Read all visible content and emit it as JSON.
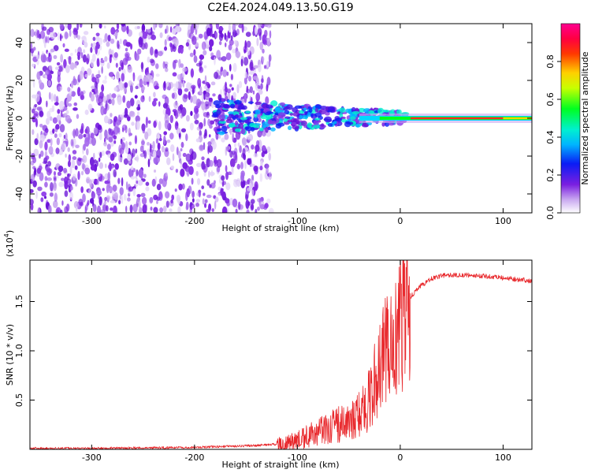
{
  "figure_title": "C2E4.2024.049.13.50.G19",
  "colors": {
    "snr_line": "#e8262a",
    "spectrogram_noise": "#7a1fe0",
    "axis": "#000000"
  },
  "chart_data": [
    {
      "type": "heatmap",
      "name": "spectrogram",
      "xlabel": "Height of straight line (km)",
      "ylabel": "Frequency (Hz)",
      "xlim": [
        -360,
        128
      ],
      "ylim": [
        -50,
        50
      ],
      "x_ticks": [
        -300,
        -200,
        -100,
        0,
        100
      ],
      "x_tick_labels": [
        "-300",
        "-200",
        "-100",
        "0",
        "100"
      ],
      "y_ticks": [
        -40,
        -20,
        0,
        20,
        40
      ],
      "y_tick_labels": [
        "-40",
        "-20",
        "0",
        "20",
        "40"
      ],
      "noise_region_x": [
        -360,
        -125
      ],
      "transition_region_x": [
        -180,
        5
      ],
      "signal_frequency_hz": 0,
      "colorbar": {
        "label": "Normalized spectral amplitude",
        "range": [
          0.0,
          1.0
        ],
        "ticks": [
          0.0,
          0.2,
          0.4,
          0.6,
          0.8
        ],
        "tick_labels": [
          "0.0",
          "0.2",
          "0.4",
          "0.6",
          "0.8"
        ]
      }
    },
    {
      "type": "line",
      "name": "snr",
      "xlabel": "Height of straight line (km)",
      "ylabel": "SNR (10 * v/v)",
      "multiplier_label": "(x10",
      "multiplier_exponent": "4",
      "multiplier_close": ")",
      "xlim": [
        -360,
        128
      ],
      "ylim": [
        0,
        1.92
      ],
      "x_ticks": [
        -300,
        -200,
        -100,
        0,
        100
      ],
      "x_tick_labels": [
        "-300",
        "-200",
        "-100",
        "0",
        "100"
      ],
      "y_ticks": [
        0.5,
        1.0,
        1.5
      ],
      "y_tick_labels": [
        "0.5",
        "1.0",
        "1.5"
      ],
      "series": [
        {
          "name": "SNR",
          "x": [
            -360,
            -300,
            -250,
            -200,
            -170,
            -150,
            -130,
            -110,
            -100,
            -90,
            -80,
            -70,
            -60,
            -50,
            -40,
            -30,
            -25,
            -20,
            -15,
            -10,
            -5,
            0,
            5,
            10,
            20,
            30,
            40,
            50,
            60,
            80,
            100,
            128
          ],
          "y": [
            0.01,
            0.01,
            0.015,
            0.02,
            0.03,
            0.035,
            0.045,
            0.06,
            0.09,
            0.13,
            0.17,
            0.22,
            0.26,
            0.3,
            0.38,
            0.5,
            0.68,
            0.8,
            0.95,
            1.05,
            1.15,
            1.28,
            1.42,
            1.55,
            1.66,
            1.73,
            1.76,
            1.77,
            1.77,
            1.76,
            1.74,
            1.71
          ]
        }
      ]
    }
  ]
}
